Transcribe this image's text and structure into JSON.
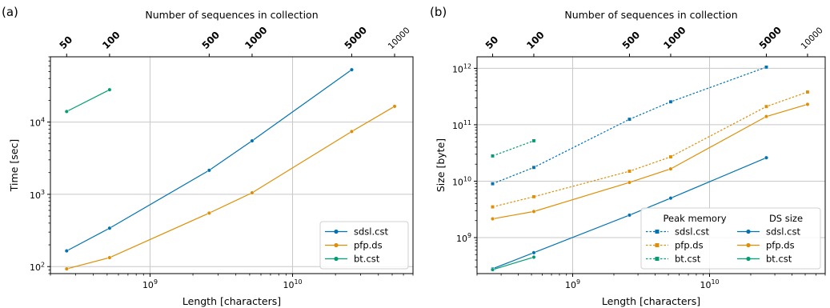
{
  "chart_data": [
    {
      "panel_label": "(a)",
      "type": "line",
      "title": "",
      "xlabel": "Length [characters]",
      "ylabel": "Time [sec]",
      "x_scale": "log",
      "y_scale": "log",
      "xlim": [
        200000000,
        70000000000
      ],
      "ylim": [
        80,
        80000
      ],
      "x_ticks": [
        {
          "value": 1000000000,
          "base": "10",
          "exp": "9"
        },
        {
          "value": 10000000000,
          "base": "10",
          "exp": "10"
        }
      ],
      "y_ticks": [
        {
          "value": 100,
          "base": "10",
          "exp": "2"
        },
        {
          "value": 1000,
          "base": "10",
          "exp": "3"
        },
        {
          "value": 10000,
          "base": "10",
          "exp": "4"
        }
      ],
      "top_axis": {
        "label": "Number of sequences in collection",
        "ticks": [
          {
            "value": 260000000,
            "label": "50"
          },
          {
            "value": 520000000,
            "label": "100"
          },
          {
            "value": 2600000000,
            "label": "500"
          },
          {
            "value": 5200000000,
            "label": "1000"
          },
          {
            "value": 26000000000,
            "label": "5000"
          },
          {
            "value": 52000000000,
            "label": "10000"
          }
        ]
      },
      "grid": true,
      "legend_position": "lower-right",
      "legend_groups": [
        {
          "title": "",
          "series_index": [
            0,
            1,
            2
          ]
        }
      ],
      "series": [
        {
          "name": "sdsl.cst",
          "color": "#0173b2",
          "dash": "solid",
          "marker": "circle",
          "x": [
            260000000,
            520000000,
            2600000000,
            5200000000,
            26000000000
          ],
          "y": [
            165,
            340,
            2150,
            5500,
            53000
          ]
        },
        {
          "name": "pfp.ds",
          "color": "#de8f05",
          "dash": "solid",
          "marker": "circle",
          "x": [
            260000000,
            520000000,
            2600000000,
            5200000000,
            26000000000,
            52000000000
          ],
          "y": [
            93,
            133,
            550,
            1050,
            7400,
            16500
          ]
        },
        {
          "name": "bt.cst",
          "color": "#029e73",
          "dash": "solid",
          "marker": "circle",
          "x": [
            260000000,
            520000000
          ],
          "y": [
            14000,
            28000
          ]
        }
      ]
    },
    {
      "panel_label": "(b)",
      "type": "line",
      "title": "",
      "xlabel": "Length [characters]",
      "ylabel": "Size [byte]",
      "x_scale": "log",
      "y_scale": "log",
      "xlim": [
        200000000,
        70000000000
      ],
      "ylim": [
        230000000,
        1600000000000
      ],
      "x_ticks": [
        {
          "value": 1000000000,
          "base": "10",
          "exp": "9"
        },
        {
          "value": 10000000000,
          "base": "10",
          "exp": "10"
        }
      ],
      "y_ticks": [
        {
          "value": 1000000000,
          "base": "10",
          "exp": "9"
        },
        {
          "value": 10000000000,
          "base": "10",
          "exp": "10"
        },
        {
          "value": 100000000000,
          "base": "10",
          "exp": "11"
        },
        {
          "value": 1000000000000,
          "base": "10",
          "exp": "12"
        }
      ],
      "top_axis": {
        "label": "Number of sequences in collection",
        "ticks": [
          {
            "value": 260000000,
            "label": "50"
          },
          {
            "value": 520000000,
            "label": "100"
          },
          {
            "value": 2600000000,
            "label": "500"
          },
          {
            "value": 5200000000,
            "label": "1000"
          },
          {
            "value": 26000000000,
            "label": "5000"
          },
          {
            "value": 52000000000,
            "label": "10000"
          }
        ]
      },
      "grid": true,
      "legend_position": "lower-right",
      "legend_groups": [
        {
          "title": "Peak memory",
          "series_index": [
            0,
            1,
            2
          ]
        },
        {
          "title": "DS size",
          "series_index": [
            3,
            4,
            5
          ]
        }
      ],
      "series": [
        {
          "name": "sdsl.cst",
          "color": "#0173b2",
          "dash": "dotted",
          "marker": "square",
          "x": [
            260000000,
            520000000,
            2600000000,
            5200000000,
            26000000000
          ],
          "y": [
            9000000000,
            17500000000,
            125000000000,
            255000000000,
            1050000000000
          ]
        },
        {
          "name": "pfp.ds",
          "color": "#de8f05",
          "dash": "dotted",
          "marker": "square",
          "x": [
            260000000,
            520000000,
            2600000000,
            5200000000,
            26000000000,
            52000000000
          ],
          "y": [
            3500000000,
            5300000000,
            15000000000,
            27000000000,
            210000000000,
            380000000000
          ]
        },
        {
          "name": "bt.cst",
          "color": "#029e73",
          "dash": "dotted",
          "marker": "square",
          "x": [
            260000000,
            520000000
          ],
          "y": [
            28000000000,
            52000000000
          ]
        },
        {
          "name": "sdsl.cst",
          "color": "#0173b2",
          "dash": "solid",
          "marker": "circle",
          "x": [
            260000000,
            520000000,
            2600000000,
            5200000000,
            26000000000
          ],
          "y": [
            280000000,
            540000000,
            2500000000,
            5000000000,
            26000000000
          ]
        },
        {
          "name": "pfp.ds",
          "color": "#de8f05",
          "dash": "solid",
          "marker": "circle",
          "x": [
            260000000,
            520000000,
            2600000000,
            5200000000,
            26000000000,
            52000000000
          ],
          "y": [
            2150000000,
            2900000000,
            9500000000,
            16500000000,
            140000000000,
            230000000000
          ]
        },
        {
          "name": "bt.cst",
          "color": "#029e73",
          "dash": "solid",
          "marker": "circle",
          "x": [
            260000000,
            520000000
          ],
          "y": [
            270000000,
            450000000
          ]
        }
      ]
    }
  ]
}
